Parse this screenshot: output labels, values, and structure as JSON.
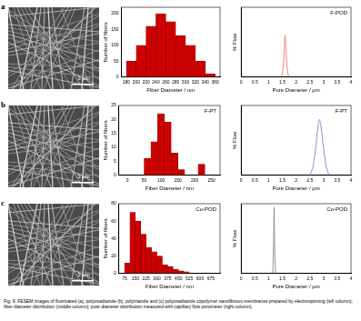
{
  "caption": "Fig. 9. FESEM images of fluorinated (a), polyoxadiazole (b), polytriazole and (c) polyoxadiazole copolymer nanofibrous membranes prepared by electrospinning (left column); fiber diameter distribution (middle column); pore diameter distribution measured with capillary flow porometer (right column).",
  "panels": [
    {
      "letter": "a",
      "scale_bar": "3 μm"
    },
    {
      "letter": "b",
      "scale_bar": "3 μm"
    },
    {
      "letter": "c",
      "scale_bar": "3 μm"
    }
  ],
  "chart_data": [
    {
      "type": "histogram",
      "xlabel": "Fiber Diameter / nm",
      "ylabel": "Number of fibers",
      "color": "#cc0000",
      "bins": [
        180,
        200,
        220,
        240,
        260,
        280,
        300,
        320,
        340,
        360
      ],
      "values": [
        50,
        100,
        160,
        200,
        175,
        130,
        100,
        50,
        10
      ],
      "xlim": [
        180,
        360
      ],
      "xticks": [
        180,
        200,
        220,
        240,
        260,
        280,
        300,
        320,
        340,
        360
      ],
      "ylim": [
        0,
        220
      ],
      "yticks": [
        0,
        50,
        100,
        150,
        200
      ],
      "grid": false
    },
    {
      "type": "line",
      "annotation": "F-POD",
      "xlabel": "Pore Diameter / μm",
      "ylabel": "% Flow",
      "color": "#f08080",
      "x": [
        1.45,
        1.5,
        1.55,
        1.6,
        1.65,
        1.7,
        1.75
      ],
      "values": [
        0,
        5,
        25,
        60,
        25,
        5,
        0
      ],
      "xlim": [
        0,
        4
      ],
      "xticks": [
        0,
        0.5,
        1,
        1.5,
        2,
        2.5,
        3,
        3.5,
        4
      ],
      "ylim": [
        0,
        100
      ],
      "tick_labels": "x",
      "grid": false
    },
    {
      "type": "histogram",
      "annotation": "F-PT",
      "xlabel": "Fiber Diameter / nm",
      "ylabel": "Number of fibers",
      "color": "#cc0000",
      "bins": [
        50,
        70,
        90,
        110,
        130,
        150,
        170,
        190,
        210,
        230
      ],
      "values": [
        6,
        12,
        22,
        19,
        8,
        2,
        0,
        0,
        4
      ],
      "xlim": [
        0,
        250
      ],
      "xticks": [
        0,
        50,
        100,
        150,
        200,
        250
      ],
      "ylim": [
        0,
        25
      ],
      "yticks": [
        0,
        5,
        10,
        15,
        20,
        25
      ],
      "grid": false
    },
    {
      "type": "line",
      "annotation": "F-PT",
      "xlabel": "Pore Diameter / μm",
      "ylabel": "% Flow",
      "color": "#8c8ce0",
      "x": [
        2.5,
        2.6,
        2.7,
        2.8,
        2.85,
        2.9,
        3.0,
        3.1,
        3.2
      ],
      "values": [
        0,
        10,
        35,
        70,
        80,
        72,
        40,
        12,
        0
      ],
      "xlim": [
        0,
        4
      ],
      "xticks": [
        0,
        0.5,
        1,
        1.5,
        2,
        2.5,
        3,
        3.5,
        4
      ],
      "ylim": [
        0,
        100
      ],
      "tick_labels": "x",
      "grid": false
    },
    {
      "type": "histogram",
      "annotation": "Co-POD",
      "xlabel": "Fiber Diameter / nm",
      "ylabel": "Number of fibers",
      "color": "#cc0000",
      "bins": [
        75,
        112.5,
        150,
        187.5,
        225,
        262.5,
        300,
        337.5,
        375,
        412.5,
        450,
        487.5,
        525
      ],
      "values": [
        12,
        70,
        60,
        45,
        30,
        25,
        20,
        10,
        8,
        5,
        3,
        2
      ],
      "xlim": [
        75,
        700
      ],
      "xticks": [
        75,
        150,
        225,
        300,
        375,
        450,
        525,
        600,
        675
      ],
      "ylim": [
        0,
        80
      ],
      "yticks": [
        0,
        20,
        40,
        60,
        80
      ],
      "grid": false
    },
    {
      "type": "line",
      "annotation": "Co-POD",
      "xlabel": "Pore Diameter / μm",
      "ylabel": "% Flow",
      "color": "#909090",
      "x": [
        1.15,
        1.18,
        1.2,
        1.22,
        1.25
      ],
      "values": [
        0,
        40,
        95,
        40,
        0
      ],
      "xlim": [
        0,
        4
      ],
      "xticks": [
        0,
        0.5,
        1,
        1.5,
        2,
        2.5,
        3,
        3.5,
        4
      ],
      "ylim": [
        0,
        100
      ],
      "tick_labels": "x",
      "grid": false
    }
  ]
}
